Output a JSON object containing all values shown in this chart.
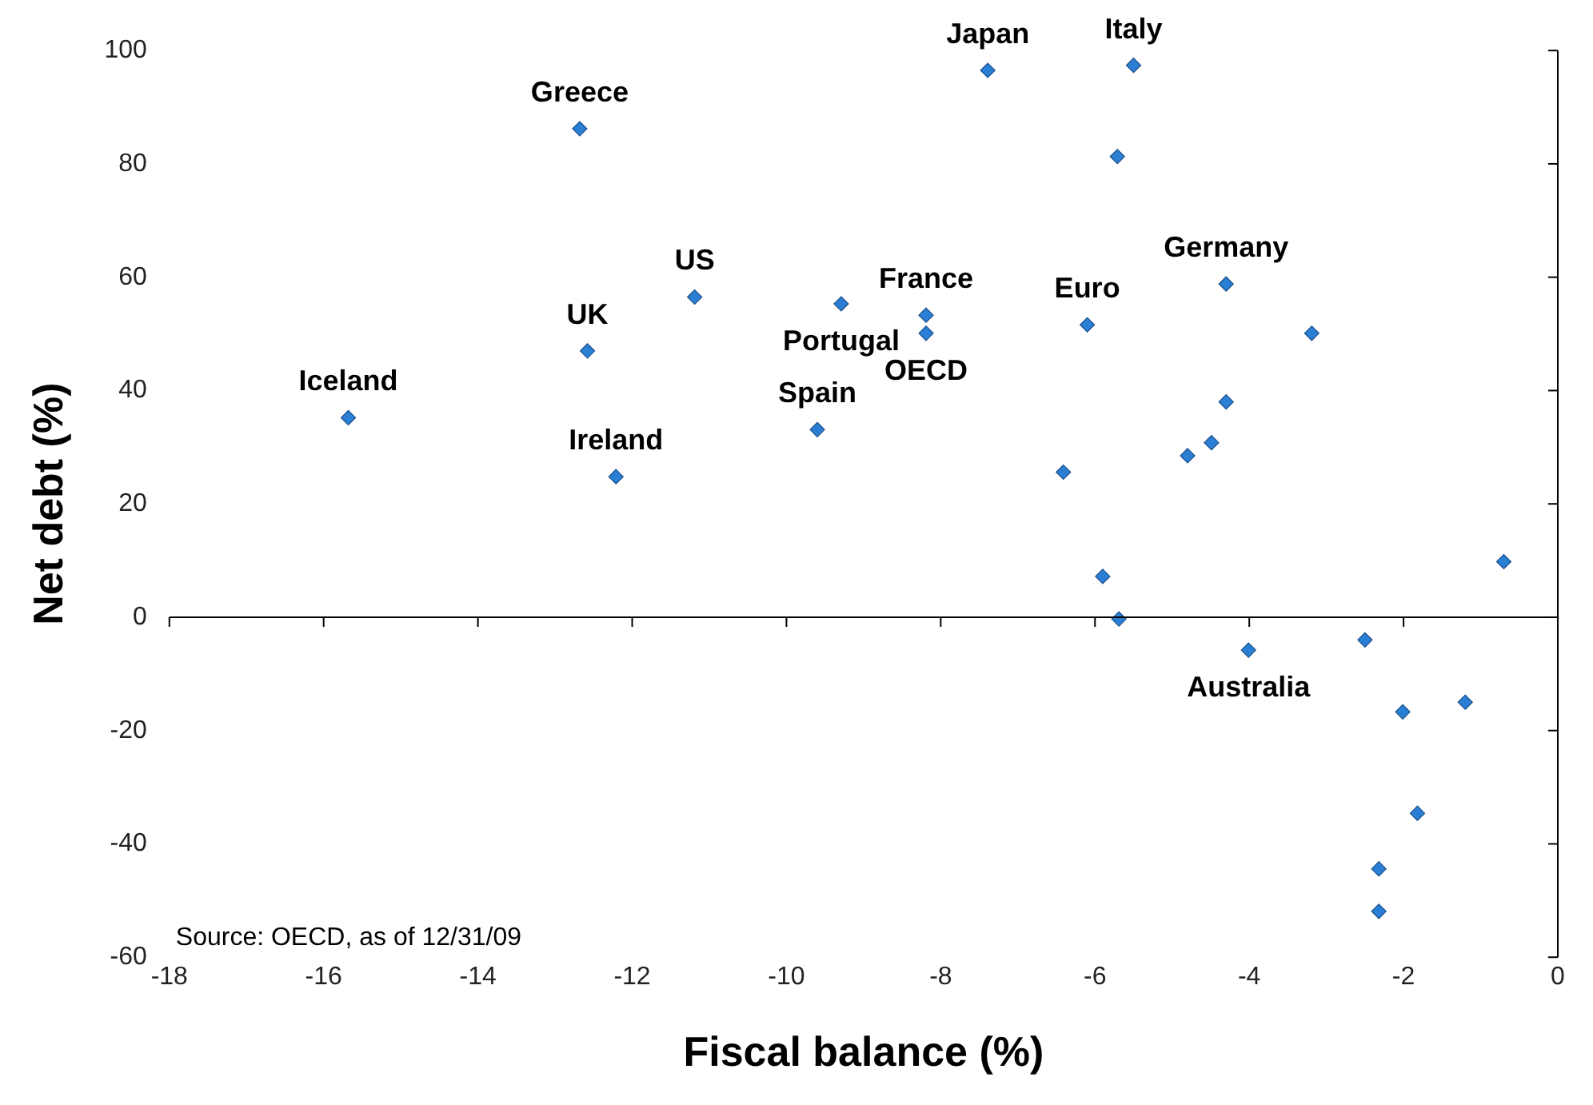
{
  "chart_data": {
    "type": "scatter",
    "xlabel": "Fiscal balance (%)",
    "ylabel": "Net debt (%)",
    "x": [
      -15.68,
      -12.68,
      -12.58,
      -12.21,
      -11.19,
      -9.29,
      -9.6,
      -8.19,
      -8.19,
      -7.39,
      -5.5,
      -5.71,
      -6.1,
      -6.41,
      -5.9,
      -5.69,
      -4.3,
      -4.3,
      -4.49,
      -4.8,
      -3.19,
      -4.01,
      -2.5,
      -0.7,
      -2.01,
      -1.2,
      -1.82,
      -2.32,
      -2.32
    ],
    "values": [
      35.2,
      86.2,
      47,
      24.8,
      56.5,
      55.3,
      33.1,
      53.3,
      50.1,
      96.5,
      97.4,
      81.3,
      51.6,
      25.6,
      7.2,
      -0.3,
      58.8,
      38,
      30.8,
      28.5,
      50.1,
      -5.8,
      -4,
      9.8,
      -16.7,
      -15,
      -34.6,
      -44.4,
      -51.9
    ],
    "color": "#2a7fd4",
    "marker": "diamond",
    "legend": false,
    "xlim": [
      -18,
      0
    ],
    "xticks": [
      -18,
      -16,
      -14,
      -12,
      -10,
      -8,
      -6,
      -4,
      -2,
      0
    ],
    "ylim": [
      -60,
      100
    ],
    "yticks": [
      -60,
      -40,
      -20,
      0,
      20,
      40,
      60,
      80,
      100
    ],
    "annotations": [
      {
        "text": "Iceland",
        "x": -15.68,
        "y": 35.2
      },
      {
        "text": "Greece",
        "x": -12.68,
        "y": 86.2
      },
      {
        "text": "UK",
        "x": -12.58,
        "y": 47
      },
      {
        "text": "Ireland",
        "x": -12.21,
        "y": 24.8
      },
      {
        "text": "US",
        "x": -11.19,
        "y": 56.5
      },
      {
        "text": "Japan",
        "x": -7.39,
        "y": 96.5
      },
      {
        "text": "Italy",
        "x": -5.5,
        "y": 97.4
      },
      {
        "text": "France",
        "x": -8.19,
        "y": 53.3
      },
      {
        "text": "OECD",
        "x": -8.19,
        "y": 50.1
      },
      {
        "text": "Portugal",
        "x": -9.29,
        "y": 55.3
      },
      {
        "text": "Spain",
        "x": -9.6,
        "y": 33.1
      },
      {
        "text": "Germany",
        "x": -4.3,
        "y": 58.8
      },
      {
        "text": "Euro",
        "x": -6.1,
        "y": 51.6
      },
      {
        "text": "Australia",
        "x": -4.01,
        "y": -5.8
      },
      "Source: OECD, as of 12/31/09"
    ]
  }
}
